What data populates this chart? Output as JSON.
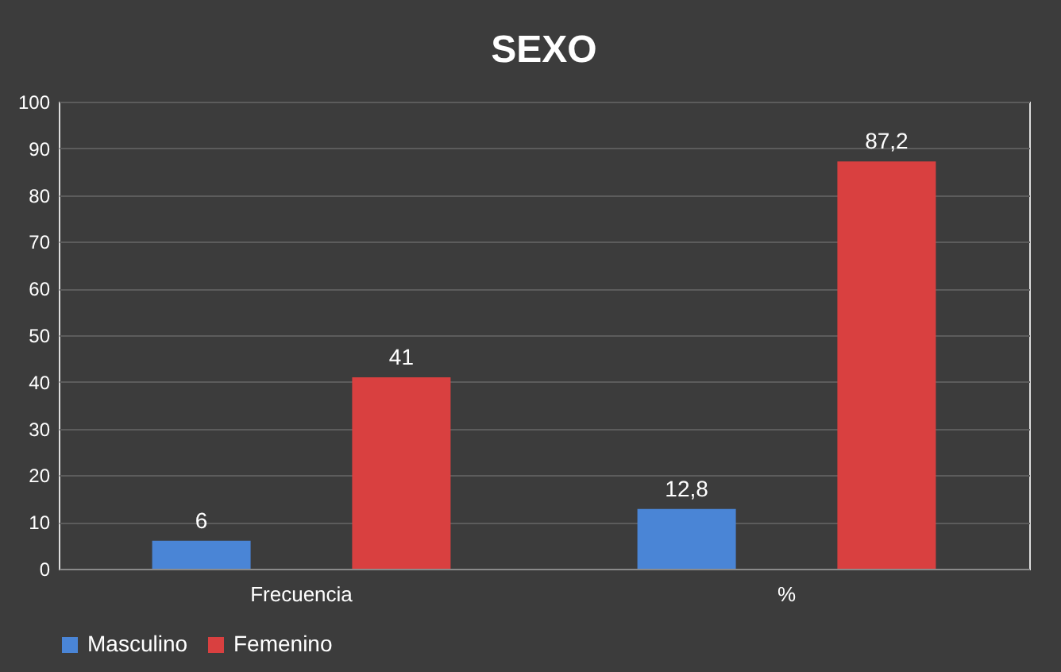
{
  "chart_data": {
    "type": "bar",
    "title": "SEXO",
    "categories": [
      "Frecuencia",
      "%"
    ],
    "series": [
      {
        "name": "Masculino",
        "color": "#4a85d6",
        "values": [
          6,
          12.8
        ],
        "value_labels": [
          "6",
          "12,8"
        ]
      },
      {
        "name": "Femenino",
        "color": "#d94040",
        "values": [
          41,
          87.2
        ],
        "value_labels": [
          "41",
          "87,2"
        ]
      }
    ],
    "ylim": [
      0,
      100
    ],
    "yticks": [
      0,
      10,
      20,
      30,
      40,
      50,
      60,
      70,
      80,
      90,
      100
    ],
    "grid": "y",
    "legend": "bottom"
  }
}
